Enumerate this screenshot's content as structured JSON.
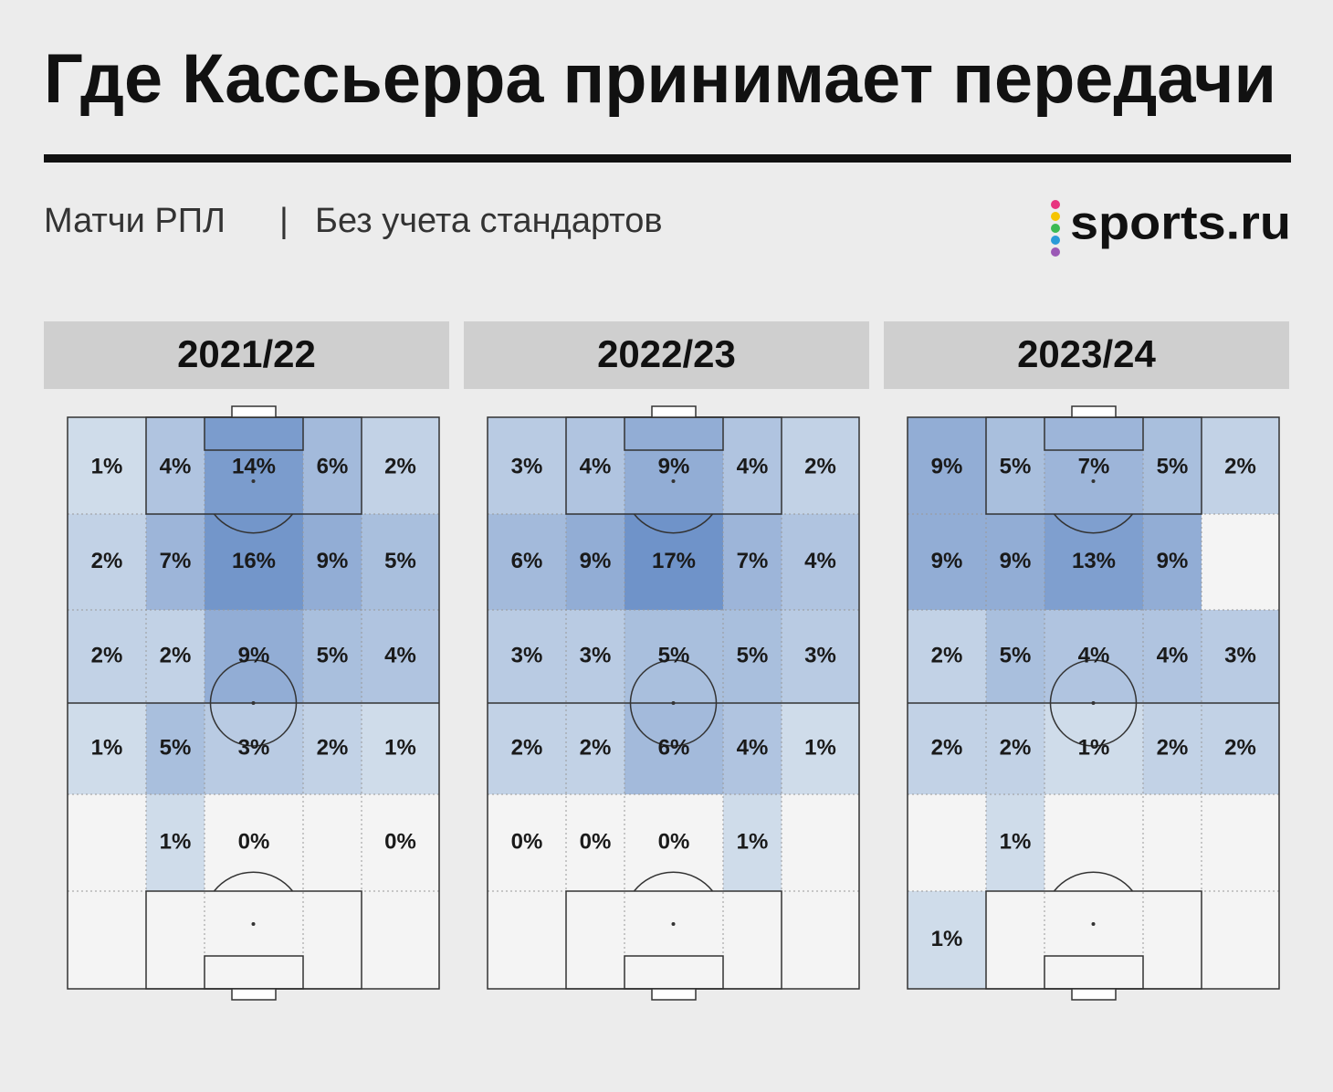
{
  "title": "Где Кассьерра принимает передачи",
  "subtitle": [
    "Матчи РПЛ",
    "Без учета стандартов"
  ],
  "separator": "|",
  "logo": "sports.ru",
  "chart_data": [
    {
      "type": "heatmap",
      "title": "2021/22",
      "color": "#6f93c9",
      "values": [
        [
          1,
          4,
          14,
          6,
          2
        ],
        [
          2,
          7,
          16,
          9,
          5
        ],
        [
          2,
          2,
          9,
          5,
          4
        ],
        [
          1,
          5,
          3,
          2,
          1
        ],
        [
          null,
          1,
          0,
          null,
          0
        ],
        [
          null,
          null,
          null,
          null,
          null
        ]
      ],
      "value_labels": [
        [
          "1%",
          "4%",
          "14%",
          "6%",
          "2%"
        ],
        [
          "2%",
          "7%",
          "16%",
          "9%",
          "5%"
        ],
        [
          "2%",
          "2%",
          "9%",
          "5%",
          "4%"
        ],
        [
          "1%",
          "5%",
          "3%",
          "2%",
          "1%"
        ],
        [
          null,
          "1%",
          "0%",
          null,
          "0%"
        ],
        [
          null,
          null,
          null,
          null,
          null
        ]
      ]
    },
    {
      "type": "heatmap",
      "title": "2022/23",
      "color": "#6f93c9",
      "values": [
        [
          3,
          4,
          9,
          4,
          2
        ],
        [
          6,
          9,
          17,
          7,
          4
        ],
        [
          3,
          3,
          5,
          5,
          3
        ],
        [
          2,
          2,
          6,
          4,
          1
        ],
        [
          0,
          0,
          0,
          1,
          null
        ],
        [
          null,
          null,
          null,
          null,
          null
        ]
      ],
      "value_labels": [
        [
          "3%",
          "4%",
          "9%",
          "4%",
          "2%"
        ],
        [
          "6%",
          "9%",
          "17%",
          "7%",
          "4%"
        ],
        [
          "3%",
          "3%",
          "5%",
          "5%",
          "3%"
        ],
        [
          "2%",
          "2%",
          "6%",
          "4%",
          "1%"
        ],
        [
          "0%",
          "0%",
          "0%",
          "1%",
          null
        ],
        [
          null,
          null,
          null,
          null,
          null
        ]
      ]
    },
    {
      "type": "heatmap",
      "title": "2023/24",
      "color": "#6f93c9",
      "values": [
        [
          9,
          5,
          7,
          5,
          2
        ],
        [
          9,
          9,
          13,
          9,
          null
        ],
        [
          2,
          5,
          4,
          4,
          3
        ],
        [
          2,
          2,
          1,
          2,
          2
        ],
        [
          null,
          1,
          null,
          null,
          null
        ],
        [
          1,
          null,
          null,
          null,
          null
        ]
      ],
      "value_labels": [
        [
          "9%",
          "5%",
          "7%",
          "5%",
          "2%"
        ],
        [
          "9%",
          "9%",
          "13%",
          "9%",
          null
        ],
        [
          "2%",
          "5%",
          "4%",
          "4%",
          "3%"
        ],
        [
          "2%",
          "2%",
          "1%",
          "2%",
          "2%"
        ],
        [
          null,
          "1%",
          null,
          null,
          null
        ],
        [
          "1%",
          null,
          null,
          null,
          null
        ]
      ]
    }
  ]
}
